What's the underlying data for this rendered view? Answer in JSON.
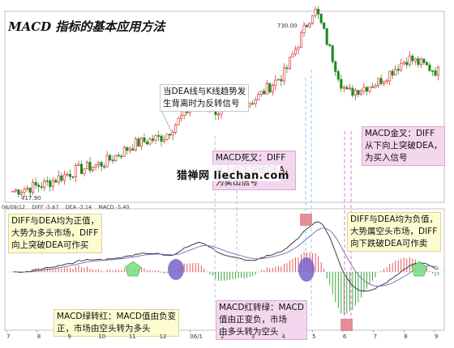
{
  "title": "MACD 指标的基本应用方法",
  "price_labels": {
    "peak": "730.00",
    "low": "417.90"
  },
  "indicator_header": {
    "date": "06/09/12",
    "diff": "DIFF -5.67",
    "dea": "DEA -3.14",
    "macd": "MACD -5.40"
  },
  "annotations": {
    "divergence": [
      "当DEA线与K线趋势发",
      "生背离时为反转信号"
    ],
    "death_cross": [
      "MACD死叉：DIFF",
      "从上向下突破DEA，",
      "为卖出信号"
    ],
    "golden_cross": [
      "MACD金叉：DIFF",
      "从下向上突破DEA，",
      "为买入信号"
    ],
    "bull_market": [
      "DIFF与DEA均为正值，",
      "大势为多头市场，DIFF",
      "向上突破DEA可作买"
    ],
    "bear_market": [
      "DIFF与DEA均为负值，",
      "大势属空头市场，DIFF",
      "向下跌破DEA可作卖"
    ],
    "green_to_red": [
      "MACD绿转红：MACD值由负变",
      "正，市场由空头转为多头"
    ],
    "red_to_green": [
      "MACD红转绿：MACD",
      "值由正变负，市场",
      "由多头转为空头"
    ]
  },
  "watermark": "猎禅网 liechan.com",
  "x_tick_labels": [
    "7",
    "8",
    "9",
    "10",
    "11",
    "12",
    "06/1",
    "2",
    "3",
    "4",
    "5",
    "6",
    "7",
    "8",
    "9"
  ],
  "colors": {
    "up": "#d62020",
    "down": "#1c8a1c",
    "diff_line": "#2a2a2a",
    "dea_line": "#6d6db0",
    "signal_dash": "#9fc6ef",
    "signal_dash_pink": "#e07ad0",
    "marker_green": "#7fe08a",
    "marker_purple": "#7b63c9",
    "marker_red": "#e07a8a"
  },
  "chart_data": {
    "type": "candlestick + macd",
    "title": "MACD 指标的基本应用方法",
    "months": [
      "7",
      "8",
      "9",
      "10",
      "11",
      "12",
      "06/1",
      "2",
      "3",
      "4",
      "5",
      "6",
      "7",
      "8",
      "9"
    ],
    "price_close_by_month": [
      418,
      430,
      455,
      470,
      505,
      520,
      585,
      560,
      590,
      640,
      700,
      600,
      620,
      665,
      640
    ],
    "price_peak": 730.0,
    "price_low": 417.9,
    "indicator_values": {
      "DIFF": -5.67,
      "DEA": -3.14,
      "MACD": -5.4
    }
  }
}
